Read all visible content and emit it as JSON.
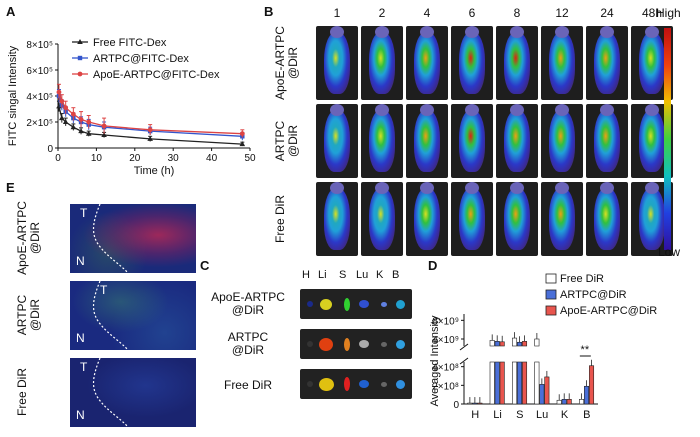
{
  "panels": {
    "A": "A",
    "B": "B",
    "C": "C",
    "D": "D",
    "E": "E"
  },
  "chart_data": [
    {
      "panel": "A",
      "type": "line",
      "xlabel": "Time (h)",
      "ylabel": "FITC singal Intensity",
      "xlim": [
        0,
        50
      ],
      "ylim": [
        0,
        800000.0
      ],
      "x_ticks": [
        "0",
        "10",
        "20",
        "30",
        "40",
        "50"
      ],
      "y_ticks": [
        "0",
        "2×10⁵",
        "4×10⁵",
        "6×10⁵",
        "8×10⁵"
      ],
      "x": [
        0.25,
        1,
        2,
        4,
        6,
        8,
        12,
        24,
        48
      ],
      "series": [
        {
          "name": "Free FITC-Dex",
          "color": "#222222",
          "marker": "triangle",
          "values": [
            320000,
            230000,
            200000,
            160000,
            130000,
            110000,
            100000,
            70000,
            30000
          ],
          "err": [
            40000,
            35000,
            30000,
            25000,
            25000,
            20000,
            20000,
            20000,
            15000
          ]
        },
        {
          "name": "ARTPC@FITC-Dex",
          "color": "#3355cc",
          "marker": "square",
          "values": [
            400000,
            330000,
            280000,
            230000,
            200000,
            180000,
            160000,
            130000,
            90000
          ],
          "err": [
            50000,
            40000,
            40000,
            40000,
            40000,
            40000,
            40000,
            30000,
            30000
          ]
        },
        {
          "name": "ApoE-ARTPC@FITC-Dex",
          "color": "#dd4444",
          "marker": "circle",
          "values": [
            430000,
            360000,
            310000,
            260000,
            220000,
            200000,
            170000,
            140000,
            110000
          ],
          "err": [
            60000,
            50000,
            50000,
            50000,
            60000,
            50000,
            60000,
            40000,
            30000
          ]
        }
      ]
    },
    {
      "panel": "D",
      "type": "bar",
      "ylabel": "Averaged Intensity",
      "categories": [
        "H",
        "Li",
        "S",
        "Lu",
        "K",
        "B"
      ],
      "upper_ticks": [
        "4×10⁹",
        "8×10⁹"
      ],
      "lower_ticks": [
        "0",
        "2×10⁸",
        "4×10⁸"
      ],
      "series": [
        {
          "name": "Free DiR",
          "color": "#ffffff",
          "values": [
            10000000.0,
            3700000000.0,
            4200000000.0,
            4000000000.0,
            40000000.0,
            50000000.0
          ]
        },
        {
          "name": "ARTPC@DiR",
          "color": "#4a6fd8",
          "values": [
            10000000.0,
            3500000000.0,
            3300000000.0,
            210000000.0,
            50000000.0,
            190000000.0
          ]
        },
        {
          "name": "ApoE-ARTPC@DiR",
          "color": "#e8554e",
          "values": [
            10000000.0,
            3400000000.0,
            3500000000.0,
            290000000.0,
            50000000.0,
            410000000.0
          ]
        }
      ],
      "annotation": "**"
    }
  ],
  "panelB": {
    "timepoints": [
      "1",
      "2",
      "4",
      "6",
      "8",
      "12",
      "24",
      "48h"
    ],
    "rows": [
      "ApoE-ARTPC\n@DiR",
      "ARTPC\n@DiR",
      "Free DiR"
    ],
    "row_lines": [
      [
        "ApoE-ARTPC",
        "@DiR"
      ],
      [
        "ARTPC",
        "@DiR"
      ],
      [
        "Free DiR"
      ]
    ],
    "scale_high": "High",
    "scale_low": "Low",
    "intensity": [
      [
        0.35,
        0.6,
        0.7,
        0.95,
        0.85,
        0.8,
        0.75,
        0.6
      ],
      [
        0.35,
        0.55,
        0.65,
        0.85,
        0.8,
        0.75,
        0.65,
        0.55
      ],
      [
        0.3,
        0.5,
        0.55,
        0.7,
        0.7,
        0.65,
        0.6,
        0.5
      ]
    ]
  },
  "panelC": {
    "columns": [
      "H",
      "Li",
      "S",
      "Lu",
      "K",
      "B"
    ],
    "rows": [
      [
        "ApoE-ARTPC",
        "@DiR"
      ],
      [
        "ARTPC",
        "@DiR"
      ],
      [
        "Free DiR"
      ]
    ]
  },
  "panelE": {
    "rows": [
      [
        "ApoE-ARTPC",
        "@DiR"
      ],
      [
        "ARTPC",
        "@DiR"
      ],
      [
        "Free DiR"
      ]
    ],
    "T": "T",
    "N": "N"
  }
}
